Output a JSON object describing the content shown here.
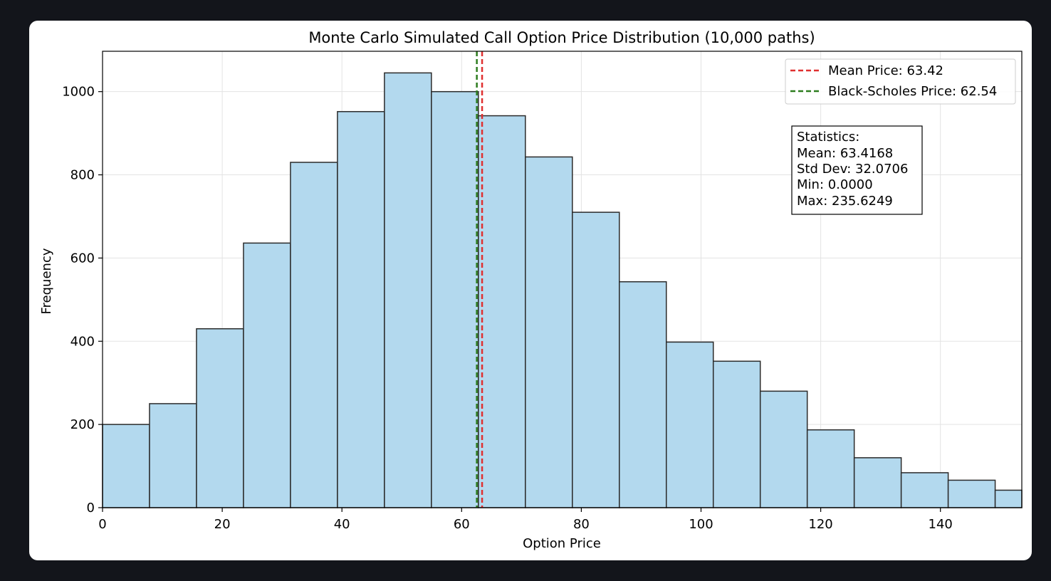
{
  "chart_data": {
    "type": "bar",
    "title": "Monte Carlo Simulated Call Option Price Distribution (10,000 paths)",
    "xlabel": "Option Price",
    "ylabel": "Frequency",
    "xlim": [
      0,
      153.6
    ],
    "ylim": [
      0,
      1097
    ],
    "xticks": [
      0,
      20,
      40,
      60,
      80,
      100,
      120,
      140
    ],
    "yticks": [
      0,
      200,
      400,
      600,
      800,
      1000
    ],
    "grid": true,
    "bin_width": 7.85,
    "bins": [
      {
        "x0": 0.0,
        "value": 200
      },
      {
        "x0": 7.85,
        "value": 250
      },
      {
        "x0": 15.7,
        "value": 430
      },
      {
        "x0": 23.55,
        "value": 636
      },
      {
        "x0": 31.4,
        "value": 830
      },
      {
        "x0": 39.25,
        "value": 952
      },
      {
        "x0": 47.1,
        "value": 1045
      },
      {
        "x0": 54.95,
        "value": 1000
      },
      {
        "x0": 62.8,
        "value": 942
      },
      {
        "x0": 70.65,
        "value": 843
      },
      {
        "x0": 78.5,
        "value": 710
      },
      {
        "x0": 86.35,
        "value": 543
      },
      {
        "x0": 94.2,
        "value": 398
      },
      {
        "x0": 102.05,
        "value": 352
      },
      {
        "x0": 109.9,
        "value": 280
      },
      {
        "x0": 117.75,
        "value": 187
      },
      {
        "x0": 125.6,
        "value": 120
      },
      {
        "x0": 133.45,
        "value": 84
      },
      {
        "x0": 141.3,
        "value": 66
      },
      {
        "x0": 149.15,
        "value": 42
      }
    ],
    "bar_color": "#b3d9ee",
    "bar_edge_color": "#2b2b2b",
    "reference_lines": [
      {
        "label": "Mean Price: 63.42",
        "x": 63.42,
        "color": "#e03030"
      },
      {
        "label": "Black-Scholes Price: 62.54",
        "x": 62.54,
        "color": "#2e7d1f"
      }
    ],
    "legend_position": "top-right",
    "stats_box": {
      "lines": [
        "Statistics:",
        "Mean: 63.4168",
        "Std Dev: 32.0706",
        "Min: 0.0000",
        "Max: 235.6249"
      ]
    }
  }
}
